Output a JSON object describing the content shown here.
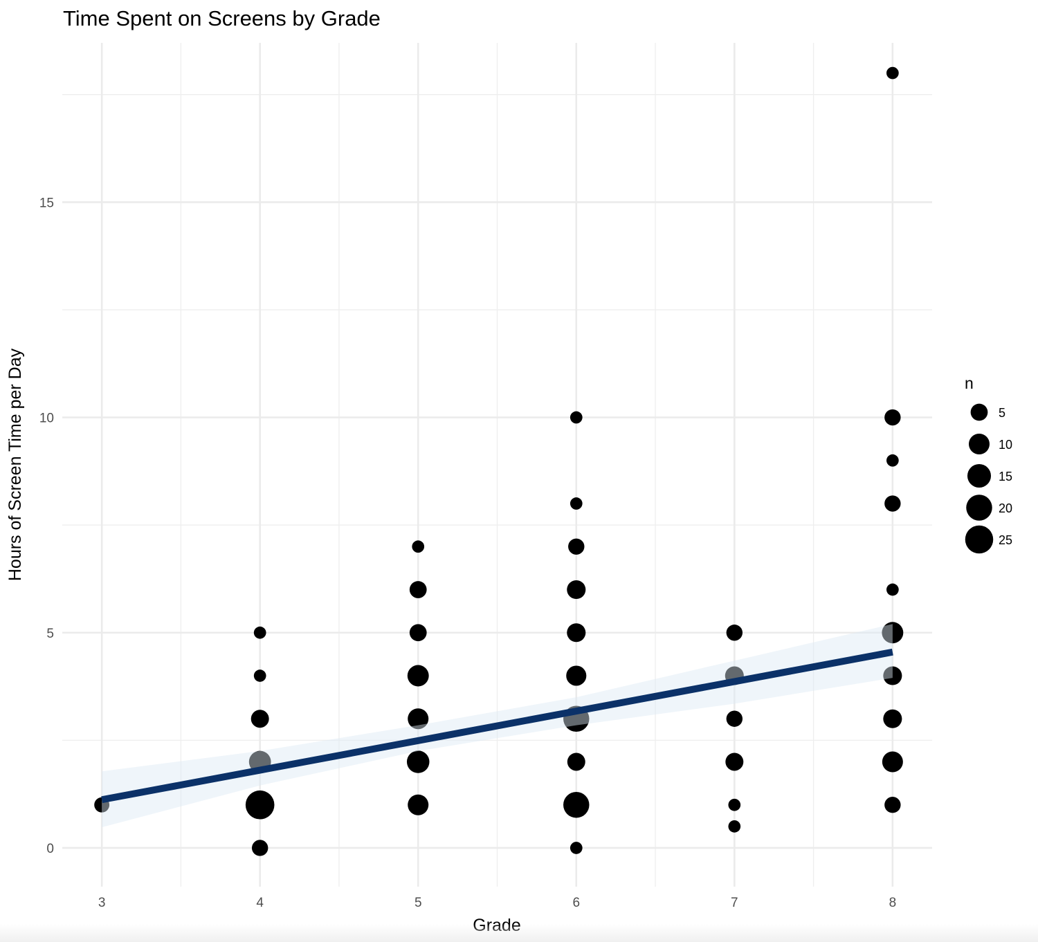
{
  "chart_data": {
    "type": "scatter",
    "title": "Time Spent on Screens by Grade",
    "xlabel": "Grade",
    "ylabel": "Hours of Screen Time per Day",
    "xlim": [
      2.75,
      8.25
    ],
    "ylim": [
      -0.9,
      18.7
    ],
    "x_ticks": [
      3,
      4,
      5,
      6,
      7,
      8
    ],
    "y_ticks": [
      0,
      5,
      10,
      15
    ],
    "x_tick_labels": [
      "3",
      "4",
      "5",
      "6",
      "7",
      "8"
    ],
    "y_tick_labels": [
      "0",
      "5",
      "10",
      "15"
    ],
    "grid": true,
    "size_variable": "n",
    "points": [
      {
        "x": 3,
        "y": 1,
        "n": 3
      },
      {
        "x": 4,
        "y": 0,
        "n": 4
      },
      {
        "x": 4,
        "y": 1,
        "n": 27
      },
      {
        "x": 4,
        "y": 2,
        "n": 12
      },
      {
        "x": 4,
        "y": 3,
        "n": 6
      },
      {
        "x": 4,
        "y": 4,
        "n": 1
      },
      {
        "x": 4,
        "y": 5,
        "n": 1
      },
      {
        "x": 5,
        "y": 1,
        "n": 10
      },
      {
        "x": 5,
        "y": 2,
        "n": 13
      },
      {
        "x": 5,
        "y": 3,
        "n": 10
      },
      {
        "x": 5,
        "y": 4,
        "n": 11
      },
      {
        "x": 5,
        "y": 5,
        "n": 5
      },
      {
        "x": 5,
        "y": 6,
        "n": 5
      },
      {
        "x": 5,
        "y": 7,
        "n": 1
      },
      {
        "x": 6,
        "y": 0,
        "n": 1
      },
      {
        "x": 6,
        "y": 1,
        "n": 20
      },
      {
        "x": 6,
        "y": 2,
        "n": 6
      },
      {
        "x": 6,
        "y": 3,
        "n": 20
      },
      {
        "x": 6,
        "y": 4,
        "n": 9
      },
      {
        "x": 6,
        "y": 5,
        "n": 7
      },
      {
        "x": 6,
        "y": 6,
        "n": 7
      },
      {
        "x": 6,
        "y": 7,
        "n": 4
      },
      {
        "x": 6,
        "y": 8,
        "n": 1
      },
      {
        "x": 6,
        "y": 10,
        "n": 1
      },
      {
        "x": 7,
        "y": 0.5,
        "n": 1
      },
      {
        "x": 7,
        "y": 1,
        "n": 1
      },
      {
        "x": 7,
        "y": 2,
        "n": 6
      },
      {
        "x": 7,
        "y": 3,
        "n": 4
      },
      {
        "x": 7,
        "y": 4,
        "n": 7
      },
      {
        "x": 7,
        "y": 5,
        "n": 4
      },
      {
        "x": 8,
        "y": 1,
        "n": 4
      },
      {
        "x": 8,
        "y": 2,
        "n": 10
      },
      {
        "x": 8,
        "y": 3,
        "n": 7
      },
      {
        "x": 8,
        "y": 4,
        "n": 7
      },
      {
        "x": 8,
        "y": 5,
        "n": 11
      },
      {
        "x": 8,
        "y": 6,
        "n": 1
      },
      {
        "x": 8,
        "y": 8,
        "n": 4
      },
      {
        "x": 8,
        "y": 9,
        "n": 1
      },
      {
        "x": 8,
        "y": 10,
        "n": 4
      },
      {
        "x": 8,
        "y": 18,
        "n": 1
      }
    ],
    "trend_line": {
      "x": [
        3,
        8
      ],
      "y": [
        1.12,
        4.55
      ],
      "color": "#0b3168"
    },
    "confidence_band": {
      "x": [
        3,
        4,
        5,
        6,
        7,
        8
      ],
      "lower": [
        0.48,
        1.45,
        2.25,
        2.85,
        3.35,
        3.95
      ],
      "upper": [
        1.78,
        2.25,
        2.85,
        3.5,
        4.35,
        5.2
      ],
      "color": "#dbe8f5"
    },
    "point_color": "#000000",
    "legend": {
      "title": "n",
      "placement": "right",
      "entries": [
        {
          "label": "5",
          "value": 5
        },
        {
          "label": "10",
          "value": 10
        },
        {
          "label": "15",
          "value": 15
        },
        {
          "label": "20",
          "value": 20
        },
        {
          "label": "25",
          "value": 25
        }
      ]
    }
  }
}
